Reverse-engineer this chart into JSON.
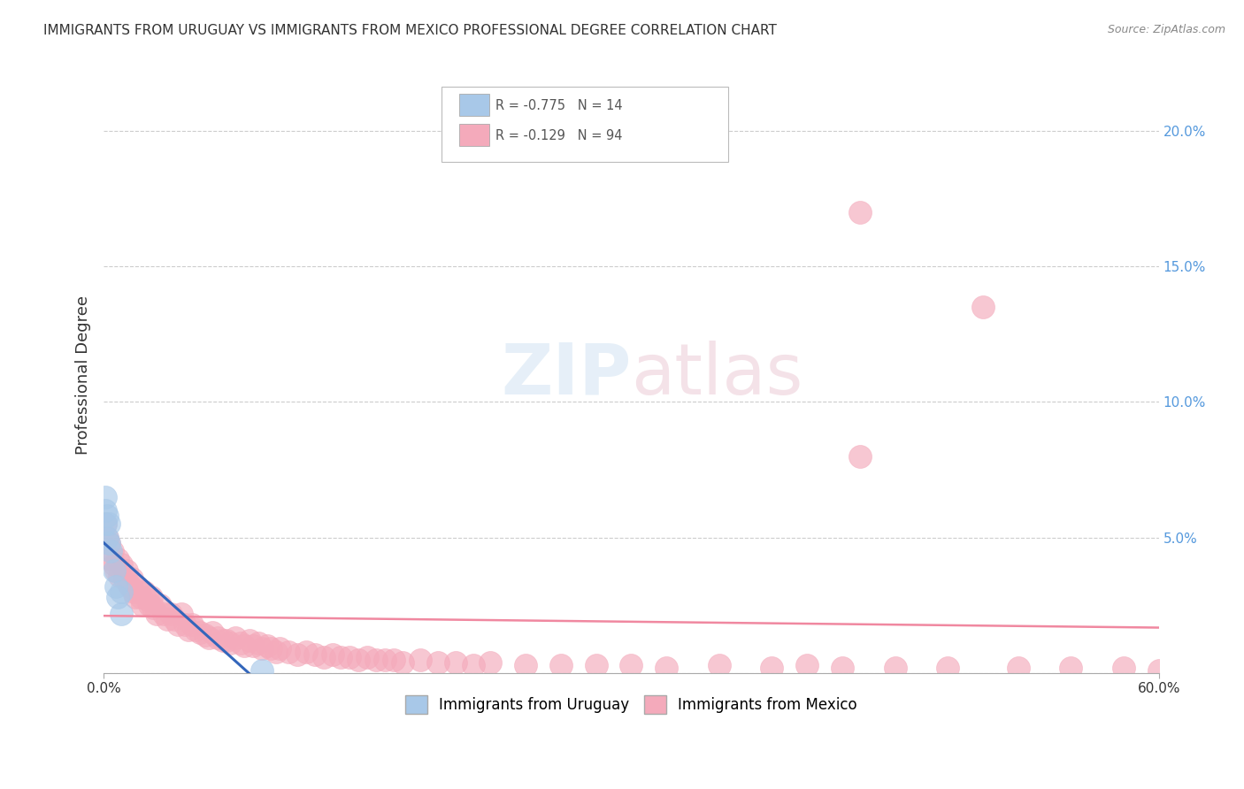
{
  "title": "IMMIGRANTS FROM URUGUAY VS IMMIGRANTS FROM MEXICO PROFESSIONAL DEGREE CORRELATION CHART",
  "source": "Source: ZipAtlas.com",
  "ylabel": "Professional Degree",
  "watermark": "ZIPatlas",
  "xlim": [
    0.0,
    0.6
  ],
  "ylim": [
    0.0,
    0.22
  ],
  "xtick_positions": [
    0.0,
    0.6
  ],
  "xtick_labels": [
    "0.0%",
    "60.0%"
  ],
  "yticks": [
    0.0,
    0.05,
    0.1,
    0.15,
    0.2
  ],
  "ytick_labels": [
    "",
    "5.0%",
    "10.0%",
    "15.0%",
    "20.0%"
  ],
  "legend_entries": [
    {
      "label": "R = -0.775   N = 14",
      "color": "#a8c8e8"
    },
    {
      "label": "R = -0.129   N = 94",
      "color": "#f4aabb"
    }
  ],
  "uruguay_color": "#a8c8e8",
  "mexico_color": "#f4aabb",
  "uruguay_line_color": "#3366bb",
  "mexico_line_color": "#f088a0",
  "background_color": "#ffffff",
  "title_fontsize": 11,
  "source_fontsize": 9,
  "uruguay_x": [
    0.001,
    0.001,
    0.001,
    0.002,
    0.002,
    0.003,
    0.003,
    0.004,
    0.006,
    0.007,
    0.008,
    0.01,
    0.01,
    0.09
  ],
  "uruguay_y": [
    0.065,
    0.06,
    0.055,
    0.058,
    0.05,
    0.048,
    0.055,
    0.045,
    0.038,
    0.032,
    0.028,
    0.03,
    0.022,
    0.001
  ],
  "mexico_x": [
    0.001,
    0.002,
    0.003,
    0.004,
    0.005,
    0.006,
    0.007,
    0.008,
    0.009,
    0.01,
    0.012,
    0.013,
    0.014,
    0.015,
    0.016,
    0.017,
    0.018,
    0.019,
    0.02,
    0.021,
    0.022,
    0.023,
    0.025,
    0.026,
    0.027,
    0.028,
    0.03,
    0.032,
    0.034,
    0.036,
    0.038,
    0.04,
    0.042,
    0.044,
    0.046,
    0.048,
    0.05,
    0.052,
    0.055,
    0.058,
    0.06,
    0.062,
    0.065,
    0.068,
    0.07,
    0.072,
    0.075,
    0.078,
    0.08,
    0.083,
    0.085,
    0.088,
    0.09,
    0.093,
    0.095,
    0.098,
    0.1,
    0.105,
    0.11,
    0.115,
    0.12,
    0.125,
    0.13,
    0.135,
    0.14,
    0.145,
    0.15,
    0.155,
    0.16,
    0.165,
    0.17,
    0.18,
    0.19,
    0.2,
    0.21,
    0.22,
    0.24,
    0.26,
    0.28,
    0.3,
    0.32,
    0.35,
    0.38,
    0.4,
    0.42,
    0.43,
    0.45,
    0.48,
    0.5,
    0.52,
    0.55,
    0.58,
    0.6,
    0.43
  ],
  "mexico_y": [
    0.055,
    0.05,
    0.048,
    0.042,
    0.045,
    0.04,
    0.038,
    0.042,
    0.036,
    0.04,
    0.035,
    0.038,
    0.033,
    0.032,
    0.035,
    0.03,
    0.028,
    0.032,
    0.03,
    0.028,
    0.025,
    0.03,
    0.027,
    0.025,
    0.028,
    0.024,
    0.022,
    0.025,
    0.022,
    0.02,
    0.022,
    0.02,
    0.018,
    0.022,
    0.018,
    0.016,
    0.018,
    0.016,
    0.015,
    0.014,
    0.013,
    0.015,
    0.013,
    0.012,
    0.012,
    0.011,
    0.013,
    0.011,
    0.01,
    0.012,
    0.01,
    0.011,
    0.009,
    0.01,
    0.009,
    0.008,
    0.009,
    0.008,
    0.007,
    0.008,
    0.007,
    0.006,
    0.007,
    0.006,
    0.006,
    0.005,
    0.006,
    0.005,
    0.005,
    0.005,
    0.004,
    0.005,
    0.004,
    0.004,
    0.003,
    0.004,
    0.003,
    0.003,
    0.003,
    0.003,
    0.002,
    0.003,
    0.002,
    0.003,
    0.002,
    0.17,
    0.002,
    0.002,
    0.135,
    0.002,
    0.002,
    0.002,
    0.001,
    0.08
  ]
}
